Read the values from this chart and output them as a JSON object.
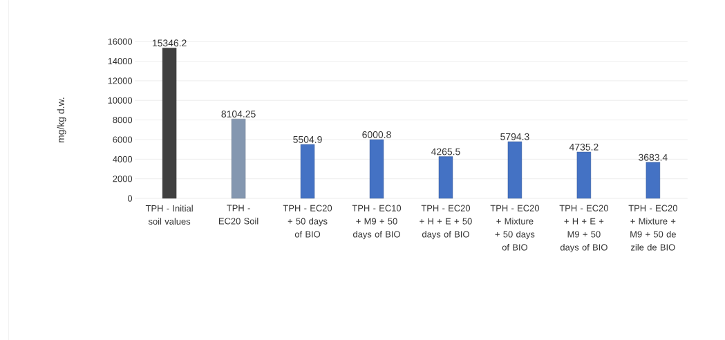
{
  "chart_data": {
    "type": "bar",
    "ylabel": "mg/kg d.w.",
    "categories": [
      "TPH - Initial soil values",
      "TPH - EC20 Soil",
      "TPH - EC20 + 50 days of BIO",
      "TPH - EC10 + M9 + 50 days of BIO",
      "TPH - EC20 + H + E + 50 days of BIO",
      "TPH - EC20 + Mixture + 50 days of BIO",
      "TPH - EC20 + H + E + M9 + 50 days of BIO",
      "TPH - EC20 + Mixture + M9 + 50 de zile de BIO"
    ],
    "values": [
      15346.2,
      8104.25,
      5504.9,
      6000.8,
      4265.5,
      5794.3,
      4735.2,
      3683.4
    ],
    "colors": [
      "#404040",
      "#8497b0",
      "#4472c4",
      "#4472c4",
      "#4472c4",
      "#4472c4",
      "#4472c4",
      "#4472c4"
    ],
    "value_labels": [
      "15346.2",
      "8104.25",
      "5504.9",
      "6000.8",
      "4265.5",
      "5794.3",
      "4735.2",
      "3683.4"
    ],
    "ylim": [
      0,
      16000
    ],
    "yticks": [
      0,
      2000,
      4000,
      6000,
      8000,
      10000,
      12000,
      14000,
      16000
    ],
    "grid": "y"
  }
}
